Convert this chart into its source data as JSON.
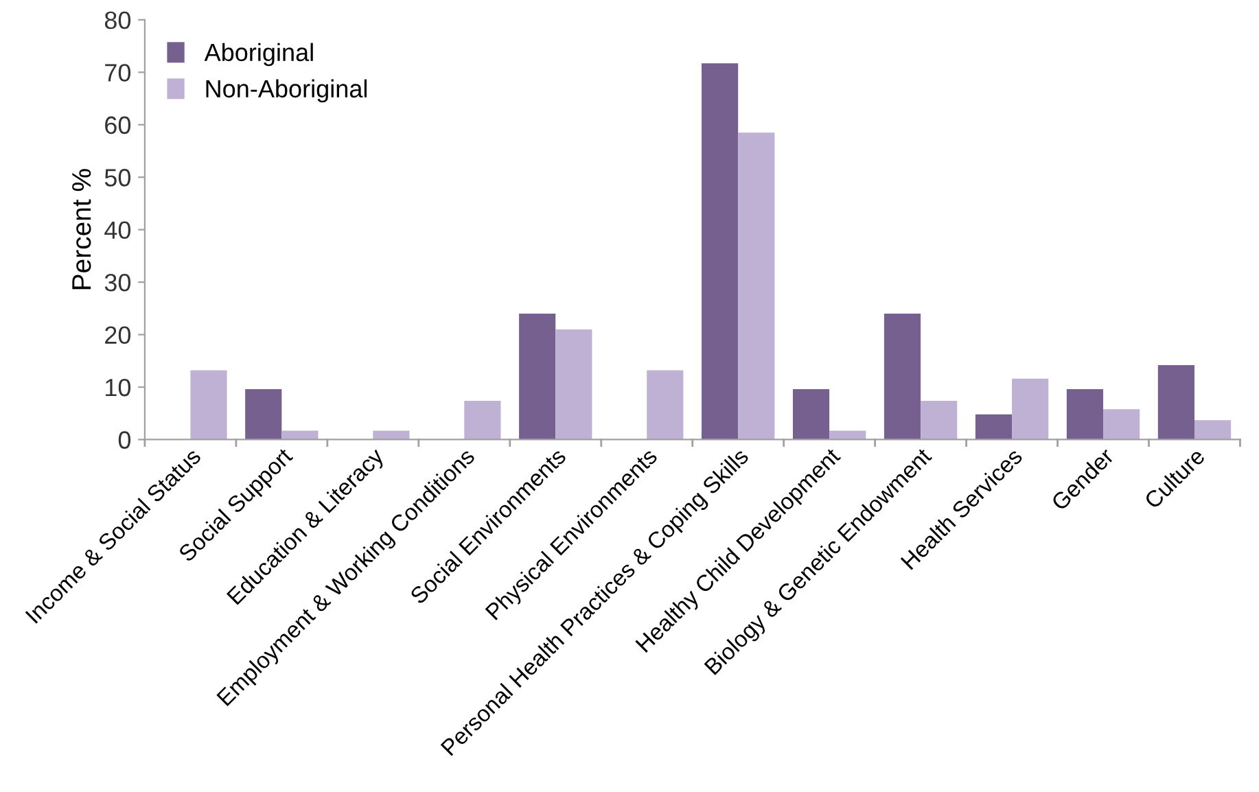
{
  "chart_data": {
    "type": "bar",
    "ylabel": "Percent %",
    "categories": [
      "Income & Social Status",
      "Social Support",
      "Education & Literacy",
      "Employment & Working Conditions",
      "Social Environments",
      "Physical Environments",
      "Personal Health Practices & Coping Skills",
      "Healthy Child Development",
      "Biology & Genetic Endowment",
      "Health Services",
      "Gender",
      "Culture"
    ],
    "series": [
      {
        "name": "Aboriginal",
        "color": "#75608f",
        "values": [
          0,
          9.6,
          0,
          0,
          24,
          0,
          71.7,
          9.6,
          24,
          4.8,
          9.6,
          14.2
        ]
      },
      {
        "name": "Non-Aboriginal",
        "color": "#bfb1d4",
        "values": [
          13.2,
          1.7,
          1.7,
          7.4,
          21,
          13.2,
          58.5,
          1.7,
          7.4,
          11.6,
          5.8,
          3.7
        ]
      }
    ],
    "ylim": [
      0,
      80
    ],
    "yticks": [
      0,
      10,
      20,
      30,
      40,
      50,
      60,
      70,
      80
    ],
    "grid": false,
    "legend": "top left"
  }
}
